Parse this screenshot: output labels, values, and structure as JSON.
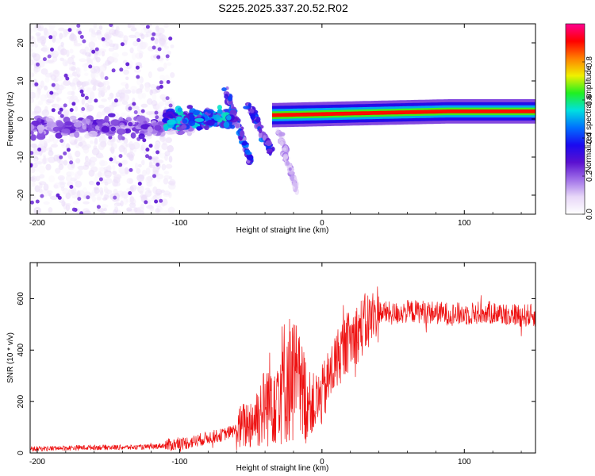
{
  "figure": {
    "title": "S225.2025.337.20.52.R02"
  },
  "chart_data": [
    {
      "type": "heatmap",
      "name": "spectrogram",
      "xlabel": "Height of straight line (km)",
      "ylabel": "Frequency (Hz)",
      "xlim": [
        -205,
        150
      ],
      "ylim": [
        -25,
        25
      ],
      "xticks": [
        -200,
        -100,
        0,
        100
      ],
      "yticks": [
        -20,
        -10,
        0,
        10,
        20
      ],
      "colorbar": {
        "label": "Normalized spectral amplitude",
        "range": [
          0,
          1
        ],
        "ticks": [
          0.0,
          0.2,
          0.4,
          0.6,
          0.8
        ],
        "tick_labels": [
          "0.0",
          "0.2",
          "0.4",
          "0.6",
          "0.8"
        ],
        "colormap": [
          "#ffffff",
          "#e8d8f8",
          "#a070e8",
          "#5a10d0",
          "#1a0af0",
          "#0070ff",
          "#00e0e0",
          "#20f020",
          "#f0f000",
          "#ff8000",
          "#ff0000",
          "#ff0090"
        ]
      },
      "features": [
        {
          "label": "diffuse noise speckle",
          "x_range": [
            -205,
            -105
          ],
          "freq_range": [
            -25,
            25
          ],
          "amplitude": 0.05
        },
        {
          "label": "low-height band",
          "x_range": [
            -205,
            -90
          ],
          "freq_center": -2,
          "amplitude": 0.15
        },
        {
          "label": "descending trace 1",
          "x_start": -68,
          "x_end": -50,
          "freq_start": 8,
          "freq_end": -11,
          "amplitude": 0.25
        },
        {
          "label": "descending trace 2",
          "x_start": -52,
          "x_end": -35,
          "freq_start": 4,
          "freq_end": -9,
          "amplitude": 0.25
        },
        {
          "label": "descending trace 3",
          "x_start": -30,
          "x_end": -18,
          "freq_start": -3,
          "freq_end": -19,
          "amplitude": 0.1
        },
        {
          "label": "dense cluster",
          "x_range": [
            -110,
            -62
          ],
          "freq_center": 0,
          "amplitude": 0.3
        },
        {
          "label": "steady carrier line",
          "x_range": [
            -35,
            150
          ],
          "freq_start": 1,
          "freq_end": 2,
          "amplitude": 0.9
        }
      ]
    },
    {
      "type": "line",
      "name": "snr",
      "xlabel": "Height of straight line (km)",
      "ylabel": "SNR (10 * v/v)",
      "xlim": [
        -205,
        150
      ],
      "ylim": [
        0,
        740
      ],
      "xticks": [
        -200,
        -100,
        0,
        100
      ],
      "yticks": [
        0,
        200,
        400,
        600
      ],
      "series": [
        {
          "name": "SNR",
          "color": "#ee1111",
          "x": [
            -205,
            -190,
            -175,
            -160,
            -145,
            -130,
            -120,
            -110,
            -100,
            -90,
            -80,
            -70,
            -60,
            -50,
            -40,
            -35,
            -30,
            -25,
            -20,
            -15,
            -10,
            -5,
            0,
            5,
            10,
            15,
            20,
            25,
            30,
            35,
            40,
            45,
            50,
            55,
            60,
            70,
            80,
            90,
            100,
            110,
            120,
            130,
            140,
            150
          ],
          "y": [
            15,
            18,
            20,
            22,
            22,
            22,
            24,
            30,
            35,
            45,
            60,
            70,
            90,
            120,
            180,
            230,
            260,
            290,
            290,
            240,
            200,
            190,
            220,
            290,
            360,
            410,
            440,
            470,
            500,
            520,
            550,
            545,
            540,
            545,
            550,
            550,
            545,
            540,
            540,
            545,
            545,
            540,
            535,
            535
          ]
        }
      ]
    }
  ]
}
